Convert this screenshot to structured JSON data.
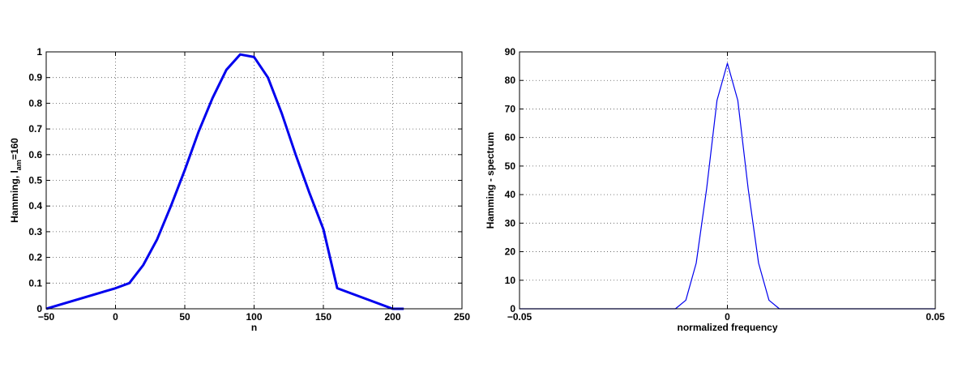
{
  "chart_data": [
    {
      "type": "line",
      "title": "",
      "xlabel": "n",
      "ylabel_main": "Hamming, l",
      "ylabel_sub": "am",
      "ylabel_tail": "=160",
      "xlim": [
        -50,
        250
      ],
      "ylim": [
        0,
        1
      ],
      "xticks": [
        -50,
        0,
        50,
        100,
        150,
        200,
        250
      ],
      "xtick_labels": [
        "−50",
        "0",
        "50",
        "100",
        "150",
        "200",
        "250"
      ],
      "yticks": [
        0,
        0.1,
        0.2,
        0.3,
        0.4,
        0.5,
        0.6,
        0.7,
        0.8,
        0.9,
        1
      ],
      "ytick_labels": [
        "0",
        "0.1",
        "0.2",
        "0.3",
        "0.4",
        "0.5",
        "0.6",
        "0.7",
        "0.8",
        "0.9",
        "1"
      ],
      "grid": true,
      "series": [
        {
          "color": "#0000ee",
          "x": [
            -50,
            0,
            10,
            20,
            30,
            40,
            50,
            60,
            70,
            80,
            90,
            100,
            110,
            120,
            130,
            140,
            150,
            160,
            200,
            208
          ],
          "y": [
            0,
            0.08,
            0.1,
            0.17,
            0.27,
            0.4,
            0.54,
            0.69,
            0.82,
            0.93,
            0.99,
            0.98,
            0.9,
            0.76,
            0.6,
            0.45,
            0.31,
            0.08,
            0,
            0
          ]
        }
      ]
    },
    {
      "type": "line",
      "title": "",
      "xlabel": "normalized frequency",
      "ylabel": "Hamming - spectrum",
      "xlim": [
        -0.05,
        0.05
      ],
      "ylim": [
        0,
        90
      ],
      "xticks": [
        -0.05,
        0,
        0.05
      ],
      "xtick_labels": [
        "−0.05",
        "0",
        "0.05"
      ],
      "yticks": [
        0,
        10,
        20,
        30,
        40,
        50,
        60,
        70,
        80,
        90
      ],
      "ytick_labels": [
        "0",
        "10",
        "20",
        "30",
        "40",
        "50",
        "60",
        "70",
        "80",
        "90"
      ],
      "grid": true,
      "series": [
        {
          "color": "#0000ee",
          "x": [
            -0.05,
            -0.04,
            -0.03,
            -0.02,
            -0.0125,
            -0.01,
            -0.0075,
            -0.005,
            -0.0025,
            0,
            0.0025,
            0.005,
            0.0075,
            0.01,
            0.0125,
            0.02,
            0.03,
            0.04,
            0.05
          ],
          "y": [
            0,
            0,
            0,
            0,
            0,
            3,
            16,
            42,
            73,
            86,
            73,
            42,
            16,
            3,
            0,
            0,
            0,
            0,
            0
          ]
        }
      ]
    }
  ]
}
